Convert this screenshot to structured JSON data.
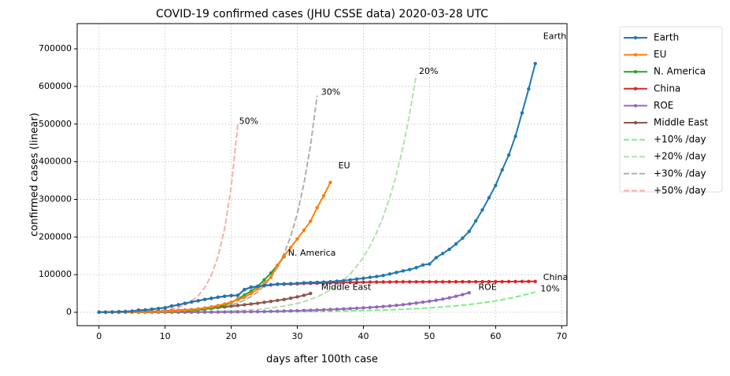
{
  "chart_data": {
    "type": "line",
    "title": "COVID-19 confirmed cases (JHU CSSE data) 2020-03-28 UTC",
    "xlabel": "days after 100th case",
    "ylabel": "confirmed cases (linear)",
    "xlim": [
      -3.3,
      70.8
    ],
    "ylim": [
      -35500,
      767000
    ],
    "xticks": [
      0,
      10,
      20,
      30,
      40,
      50,
      60,
      70
    ],
    "yticks": [
      0,
      100000,
      200000,
      300000,
      400000,
      500000,
      600000,
      700000
    ],
    "grid": true,
    "legend": "outside right",
    "series": [
      {
        "name": "Earth",
        "color": "#1f77b4",
        "linestyle": "solid",
        "marker": true,
        "values": [
          555,
          654,
          941,
          1434,
          2118,
          2927,
          5578,
          6166,
          8234,
          9927,
          12038,
          16787,
          19881,
          23892,
          27635,
          30817,
          34391,
          37120,
          40150,
          42762,
          44802,
          45221,
          60368,
          66885,
          69030,
          71224,
          73258,
          75136,
          75639,
          76197,
          76819,
          78572,
          78958,
          79561,
          80406,
          81388,
          82746,
          84112,
          86011,
          88369,
          90306,
          92840,
          95120,
          97886,
          101801,
          105847,
          109821,
          113590,
          118620,
          125875,
          128343,
          145193,
          156097,
          167449,
          181546,
          197168,
          214915,
          242713,
          272167,
          304528,
          337020,
          378287,
          417966,
          467594,
          529591,
          593291,
          660706
        ]
      },
      {
        "name": "EU",
        "color": "#ff7f0e",
        "linestyle": "solid",
        "marker": true,
        "values": [
          100,
          140,
          200,
          290,
          400,
          550,
          750,
          1000,
          1350,
          1800,
          2400,
          3200,
          4200,
          5500,
          7000,
          9000,
          11500,
          14500,
          18000,
          22000,
          27000,
          33000,
          40000,
          50000,
          62000,
          76000,
          93000,
          125000,
          150000,
          172000,
          195000,
          218000,
          242000,
          278000,
          310000,
          345000
        ]
      },
      {
        "name": "N. America",
        "color": "#2ca02c",
        "linestyle": "solid",
        "marker": true,
        "values": [
          100,
          130,
          170,
          230,
          300,
          400,
          500,
          700,
          1000,
          1300,
          1700,
          2200,
          2900,
          3700,
          4800,
          6400,
          8500,
          11000,
          14500,
          19000,
          26000,
          35000,
          46000,
          56000,
          69000,
          86000,
          104000,
          125000,
          148000
        ]
      },
      {
        "name": "China",
        "color": "#d62728",
        "linestyle": "solid",
        "marker": true,
        "values": [
          548,
          643,
          920,
          1406,
          2075,
          2877,
          5509,
          6087,
          8141,
          9802,
          11891,
          16630,
          19716,
          23707,
          27440,
          30587,
          34110,
          36814,
          39829,
          42354,
          44386,
          44759,
          59895,
          66358,
          68413,
          70513,
          72434,
          74211,
          74619,
          75077,
          75550,
          77001,
          77022,
          77241,
          77754,
          78166,
          78600,
          78928,
          79356,
          79932,
          80136,
          80261,
          80386,
          80537,
          80690,
          80770,
          80823,
          80860,
          80887,
          80921,
          80932,
          80945,
          80977,
          81003,
          81033,
          81058,
          81102,
          81156,
          81250,
          81305,
          81435,
          81498,
          81591,
          81661,
          81782,
          81897,
          81999
        ]
      },
      {
        "name": "ROE",
        "color": "#9467bd",
        "linestyle": "solid",
        "marker": true,
        "values": [
          10,
          12,
          15,
          20,
          25,
          35,
          45,
          60,
          80,
          100,
          130,
          160,
          200,
          250,
          300,
          380,
          450,
          550,
          650,
          800,
          950,
          1100,
          1300,
          1500,
          1800,
          2100,
          2400,
          2800,
          3200,
          3700,
          4200,
          4800,
          5400,
          6000,
          6700,
          7400,
          8200,
          9000,
          9900,
          10800,
          11800,
          12800,
          14000,
          15300,
          16800,
          18500,
          20300,
          22300,
          24500,
          27000,
          29500,
          32000,
          35000,
          38500,
          42500,
          47000,
          52000
        ]
      },
      {
        "name": "Middle East",
        "color": "#8c564b",
        "linestyle": "solid",
        "marker": true,
        "values": [
          100,
          150,
          250,
          400,
          600,
          900,
          1200,
          1600,
          2100,
          2700,
          3400,
          4300,
          5200,
          6200,
          7300,
          8500,
          9800,
          11200,
          12700,
          14300,
          16000,
          18000,
          20000,
          22000,
          24000,
          26500,
          29000,
          31500,
          34000,
          37500,
          41000,
          45000,
          50000
        ]
      },
      {
        "name": "+10% /day",
        "color": "#80ee80",
        "linestyle": "dashed",
        "marker": false,
        "values": [
          100,
          110,
          121,
          133,
          146,
          161,
          177,
          195,
          214,
          236,
          259,
          285,
          314,
          345,
          380,
          418,
          459,
          505,
          556,
          612,
          673,
          740,
          814,
          895,
          985,
          1083,
          1192,
          1311,
          1442,
          1586,
          1745,
          1919,
          2111,
          2323,
          2555,
          2810,
          3091,
          3400,
          3740,
          4114,
          4526,
          4978,
          5476,
          6024,
          6626,
          7289,
          8018,
          8820,
          9702,
          10672,
          11739,
          12913,
          14204,
          15625,
          17187,
          18906,
          20797,
          22876,
          25164,
          27680,
          30448,
          33493,
          36842,
          40527,
          44579,
          49037,
          53941
        ]
      },
      {
        "name": "+20% /day",
        "color": "#b4dfb0",
        "linestyle": "dashed",
        "marker": false,
        "values": [
          100,
          120,
          144,
          173,
          207,
          249,
          299,
          358,
          430,
          516,
          619,
          743,
          892,
          1070,
          1284,
          1541,
          1849,
          2219,
          2662,
          3195,
          3834,
          4601,
          5521,
          6625,
          7950,
          9540,
          11448,
          13737,
          16484,
          19781,
          23738,
          28485,
          34182,
          41019,
          49222,
          59067,
          70880,
          85056,
          102068,
          122481,
          146977,
          176373,
          211647,
          253977,
          304772,
          365726,
          438871,
          526646,
          631975
        ]
      },
      {
        "name": "+30% /day",
        "color": "#b0b0b0",
        "linestyle": "dashed",
        "marker": false,
        "values": [
          100,
          130,
          169,
          220,
          286,
          371,
          483,
          627,
          816,
          1060,
          1379,
          1792,
          2330,
          3029,
          3937,
          5119,
          6654,
          8650,
          11246,
          14619,
          19005,
          24706,
          32118,
          41754,
          54280,
          70564,
          91733,
          119252,
          155028,
          201536,
          261997,
          340596,
          442775,
          575608
        ]
      },
      {
        "name": "+50% /day",
        "color": "#f6b0a8",
        "linestyle": "dashed",
        "marker": false,
        "values": [
          100,
          150,
          225,
          338,
          506,
          759,
          1139,
          1709,
          2563,
          3844,
          5767,
          8650,
          12975,
          19462,
          29193,
          43789,
          65684,
          98526,
          147789,
          221684,
          332526,
          498789
        ]
      }
    ],
    "annotations": [
      {
        "text": "Earth",
        "x": 67.2,
        "y": 733000,
        "color": "#000000"
      },
      {
        "text": "EU",
        "x": 36.2,
        "y": 389000,
        "color": "#000000"
      },
      {
        "text": "N. America",
        "x": 28.6,
        "y": 157000,
        "color": "#000000"
      },
      {
        "text": "China",
        "x": 67.2,
        "y": 92000,
        "color": "#000000"
      },
      {
        "text": "ROE",
        "x": 57.4,
        "y": 66000,
        "color": "#000000"
      },
      {
        "text": "Middle East",
        "x": 33.6,
        "y": 66000,
        "color": "#000000"
      },
      {
        "text": "10%",
        "x": 66.8,
        "y": 62000,
        "color": "#80ee80"
      },
      {
        "text": "20%",
        "x": 48.4,
        "y": 640000,
        "color": "#b4dfb0"
      },
      {
        "text": "30%",
        "x": 33.6,
        "y": 584000,
        "color": "#b0b0b0"
      },
      {
        "text": "50%",
        "x": 21.2,
        "y": 507000,
        "color": "#f6b0a8"
      }
    ]
  }
}
